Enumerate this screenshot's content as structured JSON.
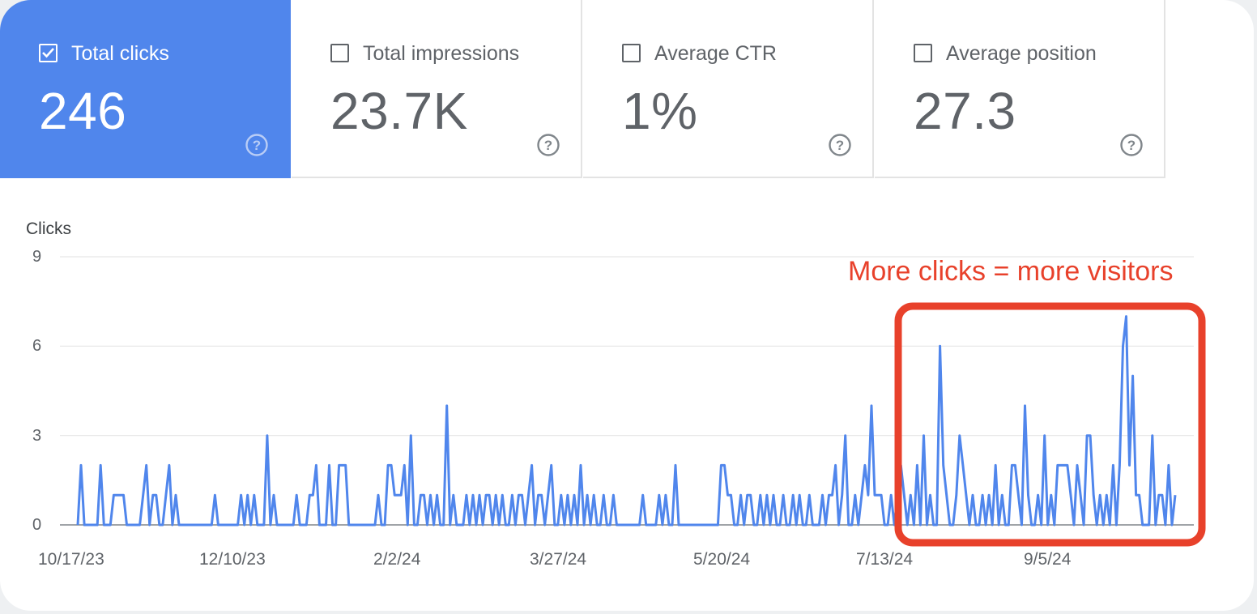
{
  "metrics": [
    {
      "label": "Total clicks",
      "value": "246",
      "checked": true
    },
    {
      "label": "Total impressions",
      "value": "23.7K",
      "checked": false
    },
    {
      "label": "Average CTR",
      "value": "1%",
      "checked": false
    },
    {
      "label": "Average position",
      "value": "27.3",
      "checked": false
    }
  ],
  "help_icon": "question-circle-icon",
  "annotation": "More clicks = more visitors",
  "colors": {
    "accent": "#5086ec",
    "line": "#5086ec",
    "highlight": "#e8412b"
  },
  "chart_data": {
    "type": "line",
    "ylabel": "Clicks",
    "ylim": [
      0,
      9
    ],
    "yticks": [
      "9",
      "6",
      "3",
      "0"
    ],
    "xticks": [
      "10/17/23",
      "12/10/23",
      "2/2/24",
      "3/27/24",
      "5/20/24",
      "7/13/24",
      "9/5/24"
    ],
    "x_start": "10/17/23",
    "x_end": "10/14/24",
    "grid": true,
    "series": [
      {
        "values": [
          0,
          2,
          0,
          0,
          0,
          0,
          0,
          2,
          0,
          0,
          0,
          1,
          1,
          1,
          1,
          0,
          0,
          0,
          0,
          0,
          1,
          2,
          0,
          1,
          1,
          0,
          0,
          1,
          2,
          0,
          1,
          0,
          0,
          0,
          0,
          0,
          0,
          0,
          0,
          0,
          0,
          0,
          1,
          0,
          0,
          0,
          0,
          0,
          0,
          0,
          1,
          0,
          1,
          0,
          1,
          0,
          0,
          0,
          3,
          0,
          1,
          0,
          0,
          0,
          0,
          0,
          0,
          1,
          0,
          0,
          0,
          1,
          1,
          2,
          0,
          0,
          0,
          2,
          0,
          0,
          2,
          2,
          2,
          0,
          0,
          0,
          0,
          0,
          0,
          0,
          0,
          0,
          1,
          0,
          0,
          2,
          2,
          1,
          1,
          1,
          2,
          0,
          3,
          0,
          0,
          1,
          1,
          0,
          1,
          0,
          1,
          0,
          0,
          4,
          0,
          1,
          0,
          0,
          0,
          1,
          0,
          1,
          0,
          1,
          0,
          1,
          1,
          0,
          1,
          0,
          1,
          0,
          0,
          1,
          0,
          1,
          1,
          0,
          1,
          2,
          0,
          1,
          1,
          0,
          1,
          2,
          0,
          0,
          1,
          0,
          1,
          0,
          1,
          0,
          2,
          0,
          1,
          0,
          1,
          0,
          0,
          1,
          0,
          0,
          1,
          0,
          0,
          0,
          0,
          0,
          0,
          0,
          0,
          1,
          0,
          0,
          0,
          0,
          1,
          0,
          1,
          0,
          0,
          2,
          0,
          0,
          0,
          0,
          0,
          0,
          0,
          0,
          0,
          0,
          0,
          0,
          0,
          2,
          2,
          1,
          1,
          0,
          0,
          1,
          0,
          1,
          1,
          0,
          0,
          1,
          0,
          1,
          0,
          1,
          0,
          0,
          1,
          0,
          0,
          1,
          0,
          1,
          0,
          0,
          1,
          0,
          0,
          0,
          1,
          0,
          1,
          1,
          2,
          0,
          1,
          3,
          0,
          0,
          1,
          0,
          1,
          2,
          1,
          4,
          1,
          1,
          1,
          0,
          0,
          1,
          0,
          1,
          2,
          1,
          0,
          1,
          0,
          2,
          0,
          3,
          0,
          1,
          0,
          0,
          6,
          2,
          1,
          0,
          0,
          1,
          3,
          2,
          1,
          0,
          1,
          0,
          0,
          1,
          0,
          1,
          0,
          2,
          0,
          1,
          0,
          0,
          2,
          2,
          1,
          0,
          4,
          1,
          0,
          0,
          1,
          0,
          3,
          0,
          1,
          0,
          2,
          2,
          2,
          2,
          1,
          0,
          2,
          1,
          0,
          3,
          3,
          1,
          0,
          1,
          0,
          1,
          0,
          2,
          0,
          2,
          6,
          7,
          2,
          5,
          1,
          1,
          0,
          0,
          0,
          3,
          0,
          1,
          1,
          0,
          2,
          0,
          1
        ]
      }
    ]
  }
}
